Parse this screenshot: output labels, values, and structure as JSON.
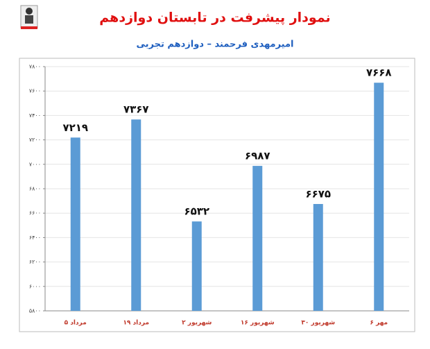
{
  "chart_data": {
    "type": "bar",
    "title": "نمودار پیشرفت در تابستان دوازدهم",
    "subtitle": "امیرمهدی فرحمند – دوازدهم تجربی",
    "categories": [
      "۵ مرداد",
      "۱۹ مرداد",
      "۲ شهریور",
      "۱۶ شهریور",
      "۳۰ شهریور",
      "۶ مهر"
    ],
    "values": [
      7219,
      7367,
      6532,
      6987,
      6675,
      7668
    ],
    "value_labels": [
      "۷۲۱۹",
      "۷۳۶۷",
      "۶۵۳۲",
      "۶۹۸۷",
      "۶۶۷۵",
      "۷۶۶۸"
    ],
    "color": "#5b9bd5",
    "ylim": [
      5800,
      7800
    ],
    "yticks": [
      {
        "value": 5800,
        "label": "۵۸۰۰"
      },
      {
        "value": 6000,
        "label": "۶۰۰۰"
      },
      {
        "value": 6200,
        "label": "۶۲۰۰"
      },
      {
        "value": 6400,
        "label": "۶۴۰۰"
      },
      {
        "value": 6600,
        "label": "۶۶۰۰"
      },
      {
        "value": 6800,
        "label": "۶۸۰۰"
      },
      {
        "value": 7000,
        "label": "۷۰۰۰"
      },
      {
        "value": 7200,
        "label": "۷۲۰۰"
      },
      {
        "value": 7400,
        "label": "۷۴۰۰"
      },
      {
        "value": 7600,
        "label": "۷۶۰۰"
      },
      {
        "value": 7800,
        "label": "۷۸۰۰"
      }
    ],
    "grid": true
  }
}
